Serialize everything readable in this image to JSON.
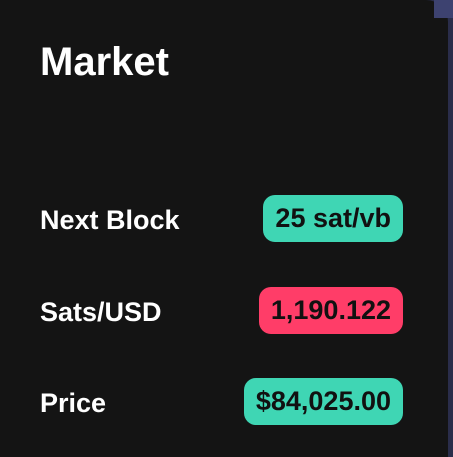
{
  "card": {
    "title": "Market"
  },
  "rows": [
    {
      "label": "Next Block",
      "value": "25 sat/vb",
      "status": "positive",
      "color": "#3fd6b4"
    },
    {
      "label": "Sats/USD",
      "value": "1,190.122",
      "status": "negative",
      "color": "#ff3d68"
    },
    {
      "label": "Price",
      "value": "$84,025.00",
      "status": "positive",
      "color": "#3fd6b4"
    }
  ],
  "colors": {
    "background": "#141414",
    "text": "#ffffff",
    "positive": "#3fd6b4",
    "negative": "#ff3d68"
  }
}
